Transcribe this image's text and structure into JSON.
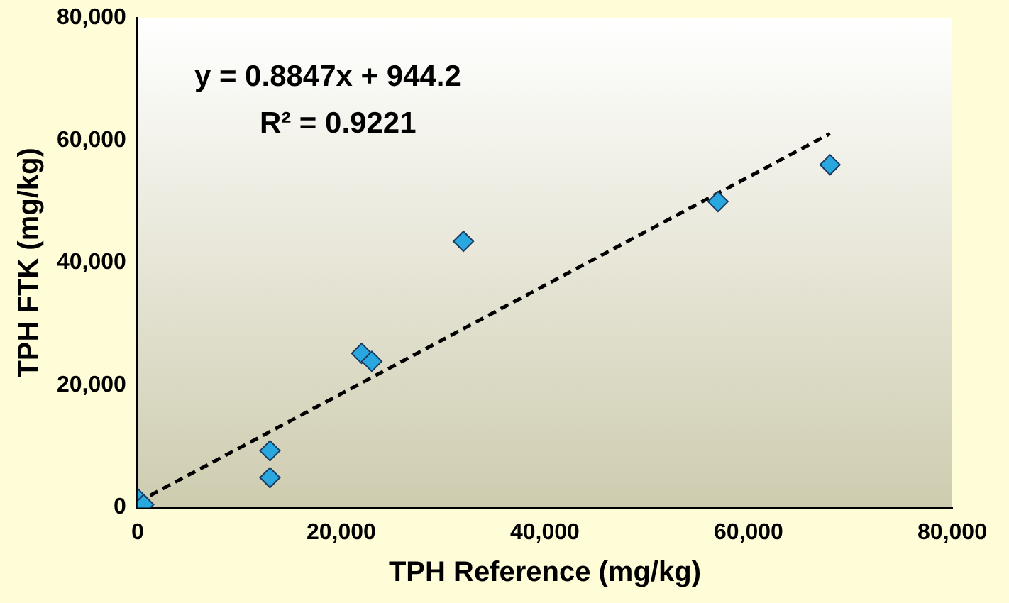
{
  "chart_data": {
    "type": "scatter",
    "xlabel": "TPH Reference (mg/kg)",
    "ylabel": "TPH FTK (mg/kg)",
    "annotations": [
      "y = 0.8847x + 944.2",
      "R² = 0.9221"
    ],
    "series": [
      {
        "color": "#29a8e0",
        "marker": "diamond",
        "x": [
          0,
          600,
          13000,
          13000,
          22000,
          23000,
          32000,
          57000,
          68000
        ],
        "values": [
          1500,
          500,
          4900,
          9300,
          25200,
          23900,
          43500,
          50000,
          56000
        ]
      },
      {
        "type": "line",
        "color": "#000000",
        "line_style": "dashed",
        "marker": "none",
        "x": [
          0,
          68000
        ],
        "values": [
          900,
          61100
        ]
      }
    ],
    "xlim": [
      0,
      80000
    ],
    "xticks": [
      {
        "value": 0,
        "label": "0"
      },
      {
        "value": 20000,
        "label": "20,000"
      },
      {
        "value": 40000,
        "label": "40,000"
      },
      {
        "value": 60000,
        "label": "60,000"
      },
      {
        "value": 80000,
        "label": "80,000"
      }
    ],
    "ylim": [
      0,
      80000
    ],
    "yticks": [
      {
        "value": 0,
        "label": "0"
      },
      {
        "value": 20000,
        "label": "20,000"
      },
      {
        "value": 40000,
        "label": "40,000"
      },
      {
        "value": 60000,
        "label": "60,000"
      },
      {
        "value": 80000,
        "label": "80,000"
      }
    ],
    "grid": false,
    "legend": false
  }
}
